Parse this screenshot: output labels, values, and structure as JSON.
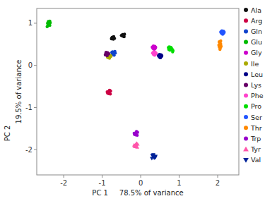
{
  "chart_data": {
    "type": "scatter",
    "xlabel": "PC 1     78.5% of variance",
    "ylabel": "19.5% of variance",
    "annotations": [
      "PC 2"
    ],
    "xlim": [
      -2.7,
      2.55
    ],
    "ylim": [
      -2.6,
      1.35
    ],
    "xticks": [
      -2,
      -1,
      0,
      1,
      2
    ],
    "yticks": [
      -2,
      -1,
      0,
      1
    ],
    "grid": false,
    "legend": "right",
    "series": [
      {
        "name": "Ala",
        "color": "#111111",
        "marker": "circle",
        "x": [
          -0.72,
          -0.76,
          -0.7,
          -0.74,
          -0.68,
          -0.73,
          -0.71,
          -0.75,
          -0.44,
          -0.48,
          -0.42,
          -0.46,
          -0.43,
          -0.47,
          -0.5,
          -0.45
        ],
        "values": [
          0.65,
          0.63,
          0.68,
          0.66,
          0.64,
          0.67,
          0.62,
          0.65,
          0.72,
          0.7,
          0.74,
          0.72,
          0.68,
          0.73,
          0.71,
          0.69
        ]
      },
      {
        "name": "Arg",
        "color": "#cc0044",
        "marker": "circle",
        "x": [
          -0.82,
          -0.85,
          -0.8,
          -0.87,
          -0.83,
          -0.78,
          -0.84,
          -0.86,
          -0.81,
          -0.79,
          -0.83,
          -0.85
        ],
        "values": [
          -0.62,
          -0.65,
          -0.6,
          -0.63,
          -0.67,
          -0.61,
          -0.64,
          -0.66,
          -0.59,
          -0.68,
          -0.62,
          -0.64
        ]
      },
      {
        "name": "Gln",
        "color": "#1144cc",
        "marker": "circle",
        "x": [
          -0.7,
          -0.74,
          -0.68,
          -0.72,
          -0.66,
          -0.73,
          -0.69,
          -0.75,
          -0.71,
          -0.67,
          -0.7,
          -0.73
        ],
        "values": [
          0.28,
          0.25,
          0.3,
          0.27,
          0.29,
          0.32,
          0.24,
          0.31,
          0.26,
          0.33,
          0.28,
          0.3
        ]
      },
      {
        "name": "Glu",
        "color": "#00bb00",
        "marker": "circle",
        "x": [
          -2.38,
          -2.4,
          -2.36,
          -2.42,
          -2.39,
          -2.37,
          -2.41,
          -2.35,
          -2.43,
          -2.38,
          -2.36,
          -2.4
        ],
        "values": [
          1.02,
          0.98,
          1.05,
          1.0,
          0.96,
          1.03,
          0.94,
          1.01,
          0.92,
          0.99,
          0.95,
          1.04
        ]
      },
      {
        "name": "Gly",
        "color": "#cc00cc",
        "marker": "circle",
        "x": [
          0.34,
          0.37,
          0.32,
          0.39,
          0.35,
          0.31,
          0.38,
          0.33,
          0.36,
          0.3,
          0.34,
          0.37
        ],
        "values": [
          0.42,
          0.45,
          0.4,
          0.43,
          0.38,
          0.44,
          0.41,
          0.46,
          0.39,
          0.43,
          0.42,
          0.4
        ]
      },
      {
        "name": "Ile",
        "color": "#aaaa00",
        "marker": "circle",
        "x": [
          -0.82,
          -0.85,
          -0.8,
          -0.83,
          -0.78,
          -0.84,
          -0.81,
          -0.79,
          -0.86,
          -0.77,
          -0.82,
          -0.84
        ],
        "values": [
          0.22,
          0.2,
          0.24,
          0.18,
          0.21,
          0.25,
          0.17,
          0.23,
          0.19,
          0.22,
          0.21,
          0.23
        ]
      },
      {
        "name": "Leu",
        "color": "#000088",
        "marker": "circle",
        "x": [
          0.5,
          0.53,
          0.48,
          0.55,
          0.51,
          0.47,
          0.54,
          0.49,
          0.52,
          0.46,
          0.5,
          0.53
        ],
        "values": [
          0.22,
          0.25,
          0.2,
          0.23,
          0.18,
          0.24,
          0.21,
          0.26,
          0.19,
          0.23,
          0.22,
          0.21
        ]
      },
      {
        "name": "Lys",
        "color": "#660066",
        "marker": "circle",
        "x": [
          -0.88,
          -0.91,
          -0.86,
          -0.89,
          -0.84,
          -0.9,
          -0.87,
          -0.85,
          -0.92,
          -0.83,
          -0.88,
          -0.9
        ],
        "values": [
          0.28,
          0.26,
          0.3,
          0.24,
          0.27,
          0.31,
          0.23,
          0.29,
          0.25,
          0.28,
          0.27,
          0.29
        ]
      },
      {
        "name": "Phe",
        "color": "#ff44cc",
        "marker": "circle",
        "x": [
          0.35,
          0.38,
          0.33,
          0.4,
          0.36,
          0.32,
          0.39,
          0.34,
          0.37,
          0.31,
          0.35,
          0.38
        ],
        "values": [
          0.28,
          0.31,
          0.26,
          0.29,
          0.24,
          0.3,
          0.27,
          0.32,
          0.25,
          0.29,
          0.28,
          0.27
        ]
      },
      {
        "name": "Pro",
        "color": "#00dd00",
        "marker": "circle",
        "x": [
          0.75,
          0.78,
          0.73,
          0.8,
          0.76,
          0.72,
          0.79,
          0.74,
          0.77,
          0.82,
          0.83,
          0.84
        ],
        "values": [
          0.4,
          0.43,
          0.38,
          0.41,
          0.36,
          0.42,
          0.39,
          0.44,
          0.37,
          0.38,
          0.32,
          0.35
        ]
      },
      {
        "name": "Ser",
        "color": "#2255ff",
        "marker": "circle",
        "x": [
          2.12,
          2.15,
          2.1,
          2.17,
          2.13,
          2.09,
          2.16,
          2.11,
          2.14,
          2.08,
          2.12,
          2.15
        ],
        "values": [
          0.78,
          0.81,
          0.76,
          0.79,
          0.74,
          0.8,
          0.77,
          0.82,
          0.75,
          0.79,
          0.78,
          0.77
        ]
      },
      {
        "name": "Thr",
        "color": "#ff8800",
        "marker": "circle",
        "x": [
          2.05,
          2.07,
          2.04,
          2.08,
          2.06,
          2.03,
          2.09,
          2.05,
          2.07,
          2.04,
          2.06,
          2.08
        ],
        "values": [
          0.48,
          0.52,
          0.44,
          0.5,
          0.4,
          0.48,
          0.45,
          0.54,
          0.42,
          0.56,
          0.38,
          0.58
        ]
      },
      {
        "name": "Trp",
        "color": "#9900cc",
        "marker": "circle",
        "x": [
          -0.12,
          -0.15,
          -0.1,
          -0.17,
          -0.13,
          -0.08,
          -0.16,
          -0.11,
          -0.14,
          -0.09,
          -0.12,
          -0.15
        ],
        "values": [
          -1.6,
          -1.63,
          -1.58,
          -1.61,
          -1.65,
          -1.59,
          -1.64,
          -1.57,
          -1.62,
          -1.66,
          -1.6,
          -1.63
        ]
      },
      {
        "name": "Tyr",
        "color": "#ff55aa",
        "marker": "triangle-up",
        "x": [
          -0.12,
          -0.15,
          -0.1,
          -0.17,
          -0.13,
          -0.08,
          -0.16,
          -0.11,
          -0.14,
          -0.09,
          -0.12,
          -0.15
        ],
        "values": [
          -1.88,
          -1.91,
          -1.86,
          -1.89,
          -1.93,
          -1.87,
          -1.92,
          -1.85,
          -1.9,
          -1.94,
          -1.88,
          -1.91
        ]
      },
      {
        "name": "Val",
        "color": "#002299",
        "marker": "triangle-down",
        "x": [
          0.34,
          0.37,
          0.32,
          0.39,
          0.35,
          0.3,
          0.38,
          0.33,
          0.36,
          0.29,
          0.34,
          0.37
        ],
        "values": [
          -2.15,
          -2.18,
          -2.13,
          -2.16,
          -2.2,
          -2.14,
          -2.19,
          -2.12,
          -2.17,
          -2.21,
          -2.15,
          -2.18
        ]
      }
    ]
  }
}
